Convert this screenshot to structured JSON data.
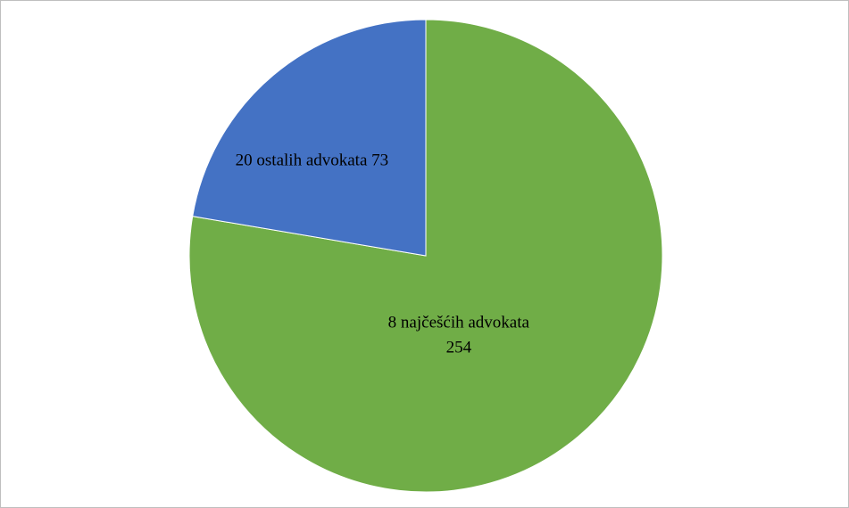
{
  "chart_data": {
    "type": "pie",
    "categories": [
      "8 najčešćih advokata",
      "20 ostalih advokata"
    ],
    "values": [
      254,
      73
    ],
    "colors": [
      "#70ad47",
      "#4472c4"
    ],
    "start_angle": 0,
    "direction": "clockwise"
  }
}
